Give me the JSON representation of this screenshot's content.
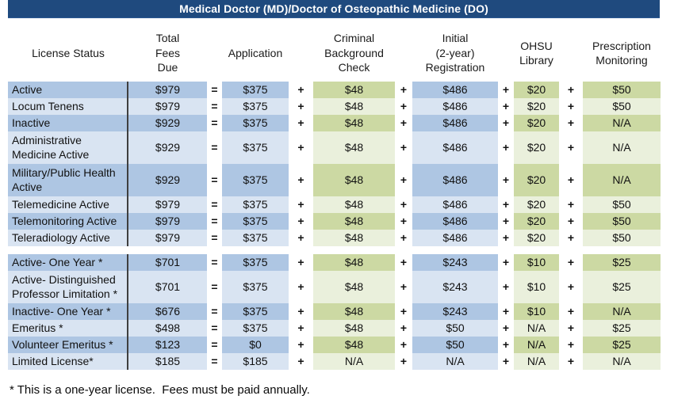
{
  "title": "Medical Doctor (MD)/Doctor of Osteopathic Medicine (DO)",
  "columns": {
    "license_status": "License Status",
    "total_fees_due": "Total\nFees\nDue",
    "application": "Application",
    "criminal_background_check": "Criminal\nBackground\nCheck",
    "initial_registration": "Initial\n(2-year)\nRegistration",
    "ohsu_library": "OHSU\nLibrary",
    "prescription_monitoring": "Prescription\nMonitoring"
  },
  "operators": {
    "equals": "=",
    "plus": "+"
  },
  "colors": {
    "title_bar": "#1f4a7e",
    "row_blue_dark": "#aec6e3",
    "row_blue_light": "#d9e4f2",
    "row_green_dark": "#ccd9a3",
    "row_green_light": "#eaf0dc"
  },
  "groups": [
    {
      "rows": [
        {
          "status": "Active",
          "total": "$979",
          "application": "$375",
          "background_check": "$48",
          "registration": "$486",
          "library": "$20",
          "monitoring": "$50"
        },
        {
          "status": "Locum Tenens",
          "total": "$979",
          "application": "$375",
          "background_check": "$48",
          "registration": "$486",
          "library": "$20",
          "monitoring": "$50"
        },
        {
          "status": "Inactive",
          "total": "$929",
          "application": "$375",
          "background_check": "$48",
          "registration": "$486",
          "library": "$20",
          "monitoring": "N/A"
        },
        {
          "status": "Administrative Medicine Active",
          "total": "$929",
          "application": "$375",
          "background_check": "$48",
          "registration": "$486",
          "library": "$20",
          "monitoring": "N/A",
          "tall": true
        },
        {
          "status": "Military/Public Health Active",
          "total": "$929",
          "application": "$375",
          "background_check": "$48",
          "registration": "$486",
          "library": "$20",
          "monitoring": "N/A",
          "tall": true
        },
        {
          "status": "Telemedicine Active",
          "total": "$979",
          "application": "$375",
          "background_check": "$48",
          "registration": "$486",
          "library": "$20",
          "monitoring": "$50"
        },
        {
          "status": "Telemonitoring Active",
          "total": "$979",
          "application": "$375",
          "background_check": "$48",
          "registration": "$486",
          "library": "$20",
          "monitoring": "$50"
        },
        {
          "status": "Teleradiology Active",
          "total": "$979",
          "application": "$375",
          "background_check": "$48",
          "registration": "$486",
          "library": "$20",
          "monitoring": "$50"
        }
      ]
    },
    {
      "rows": [
        {
          "status": "Active- One Year *",
          "total": "$701",
          "application": "$375",
          "background_check": "$48",
          "registration": "$243",
          "library": "$10",
          "monitoring": "$25"
        },
        {
          "status": "Active- Distinguished Professor Limitation *",
          "total": "$701",
          "application": "$375",
          "background_check": "$48",
          "registration": "$243",
          "library": "$10",
          "monitoring": "$25",
          "tall": true
        },
        {
          "status": "Inactive- One Year *",
          "total": "$676",
          "application": "$375",
          "background_check": "$48",
          "registration": "$243",
          "library": "$10",
          "monitoring": "N/A"
        },
        {
          "status": "Emeritus *",
          "total": "$498",
          "application": "$375",
          "background_check": "$48",
          "registration": "$50",
          "library": "N/A",
          "monitoring": "$25"
        },
        {
          "status": "Volunteer Emeritus *",
          "total": "$123",
          "application": "$0",
          "background_check": "$48",
          "registration": "$50",
          "library": "N/A",
          "monitoring": "$25"
        },
        {
          "status": "Limited License*",
          "total": "$185",
          "application": "$185",
          "background_check": "N/A",
          "registration": "N/A",
          "library": "N/A",
          "monitoring": "N/A"
        }
      ]
    }
  ],
  "footnote": "* This is a one-year license.  Fees must be paid annually."
}
